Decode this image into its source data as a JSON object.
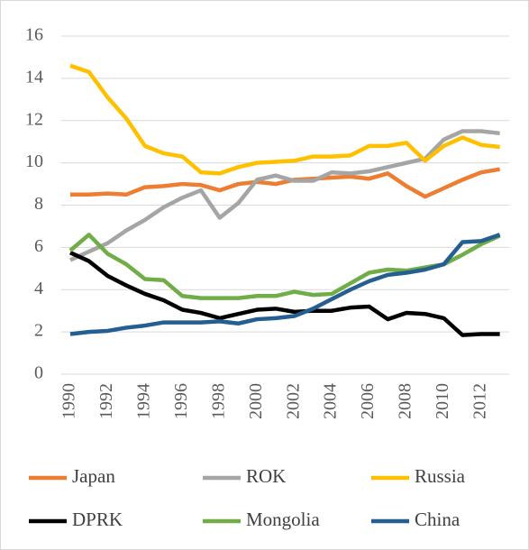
{
  "chart_data": {
    "type": "line",
    "x": [
      1990,
      1991,
      1992,
      1993,
      1994,
      1995,
      1996,
      1997,
      1998,
      1999,
      2000,
      2001,
      2002,
      2003,
      2004,
      2005,
      2006,
      2007,
      2008,
      2009,
      2010,
      2011,
      2012,
      2013
    ],
    "xlim": [
      1989.5,
      2013.5
    ],
    "xticks": [
      1990,
      1992,
      1994,
      1996,
      1998,
      2000,
      2002,
      2004,
      2006,
      2008,
      2010,
      2012
    ],
    "ylim": [
      0,
      16
    ],
    "yticks": [
      0,
      2,
      4,
      6,
      8,
      10,
      12,
      14,
      16
    ],
    "grid": true,
    "legend": "bottom",
    "series": [
      {
        "name": "Japan",
        "color": "#ed7d31",
        "values": [
          8.5,
          8.5,
          8.55,
          8.5,
          8.85,
          8.9,
          9.0,
          8.95,
          8.7,
          9.0,
          9.1,
          9.0,
          9.2,
          9.25,
          9.3,
          9.35,
          9.25,
          9.5,
          8.9,
          8.4,
          8.8,
          9.2,
          9.55,
          9.7
        ]
      },
      {
        "name": "ROK",
        "color": "#a5a5a5",
        "values": [
          5.4,
          5.8,
          6.2,
          6.8,
          7.3,
          7.9,
          8.35,
          8.7,
          7.4,
          8.1,
          9.2,
          9.4,
          9.15,
          9.15,
          9.55,
          9.5,
          9.6,
          9.8,
          10.0,
          10.2,
          11.1,
          11.5,
          11.5,
          11.4
        ]
      },
      {
        "name": "Russia",
        "color": "#ffc000",
        "values": [
          14.6,
          14.3,
          13.1,
          12.1,
          10.8,
          10.45,
          10.3,
          9.55,
          9.5,
          9.8,
          10.0,
          10.05,
          10.1,
          10.3,
          10.3,
          10.35,
          10.8,
          10.8,
          10.95,
          10.1,
          10.8,
          11.2,
          10.85,
          10.75
        ]
      },
      {
        "name": "DPRK",
        "color": "#000000",
        "values": [
          5.75,
          5.35,
          4.65,
          4.2,
          3.8,
          3.5,
          3.05,
          2.9,
          2.65,
          2.85,
          3.05,
          3.1,
          2.95,
          3.0,
          3.0,
          3.15,
          3.2,
          2.6,
          2.9,
          2.85,
          2.65,
          1.85,
          1.9,
          1.9
        ]
      },
      {
        "name": "Mongolia",
        "color": "#70ad47",
        "values": [
          5.85,
          6.6,
          5.7,
          5.2,
          4.5,
          4.45,
          3.7,
          3.6,
          3.6,
          3.6,
          3.7,
          3.7,
          3.9,
          3.75,
          3.8,
          4.3,
          4.8,
          4.95,
          4.9,
          5.05,
          5.2,
          5.65,
          6.15,
          6.55
        ]
      },
      {
        "name": "China",
        "color": "#255e91",
        "values": [
          1.9,
          2.0,
          2.05,
          2.2,
          2.3,
          2.45,
          2.45,
          2.45,
          2.5,
          2.4,
          2.6,
          2.65,
          2.75,
          3.1,
          3.55,
          4.0,
          4.4,
          4.7,
          4.8,
          4.95,
          5.2,
          6.25,
          6.3,
          6.6
        ]
      }
    ]
  }
}
